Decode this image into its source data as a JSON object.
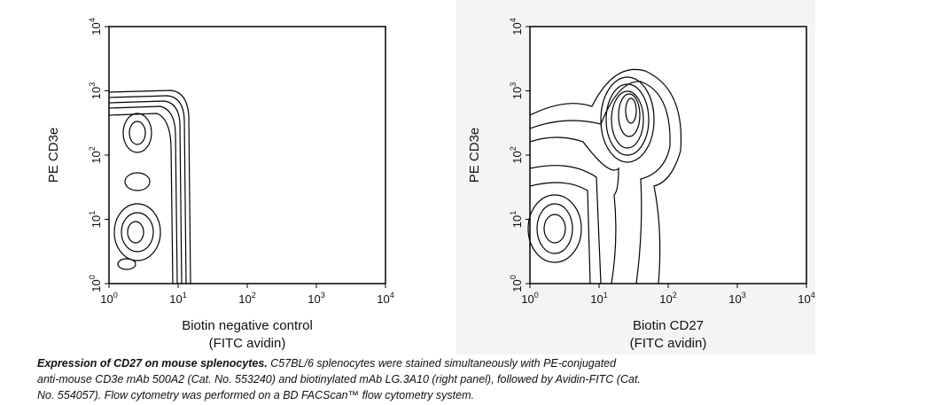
{
  "panels": [
    {
      "y_label": "PE CD3e",
      "x_label_line1": "Biotin negative control",
      "x_label_line2": "(FITC avidin)",
      "tick_base": "10",
      "tick_exponents": [
        "0",
        "1",
        "2",
        "3",
        "4"
      ]
    },
    {
      "y_label": "PE CD3e",
      "x_label_line1": "Biotin CD27",
      "x_label_line2": "(FITC avidin)",
      "tick_base": "10",
      "tick_exponents": [
        "0",
        "1",
        "2",
        "3",
        "4"
      ]
    }
  ],
  "caption": {
    "bold": "Expression of CD27 on mouse splenocytes.",
    "lines": [
      " C57BL/6 splenocytes were stained simultaneously with PE-conjugated",
      "anti-mouse CD3e mAb 500A2 (Cat. No. 553240) and biotinylated mAb LG.3A10 (right panel),  followed by Avidin-FITC (Cat.",
      "No. 554057). Flow cytometry was performed on a BD  FACScan™ flow cytometry system."
    ]
  }
}
